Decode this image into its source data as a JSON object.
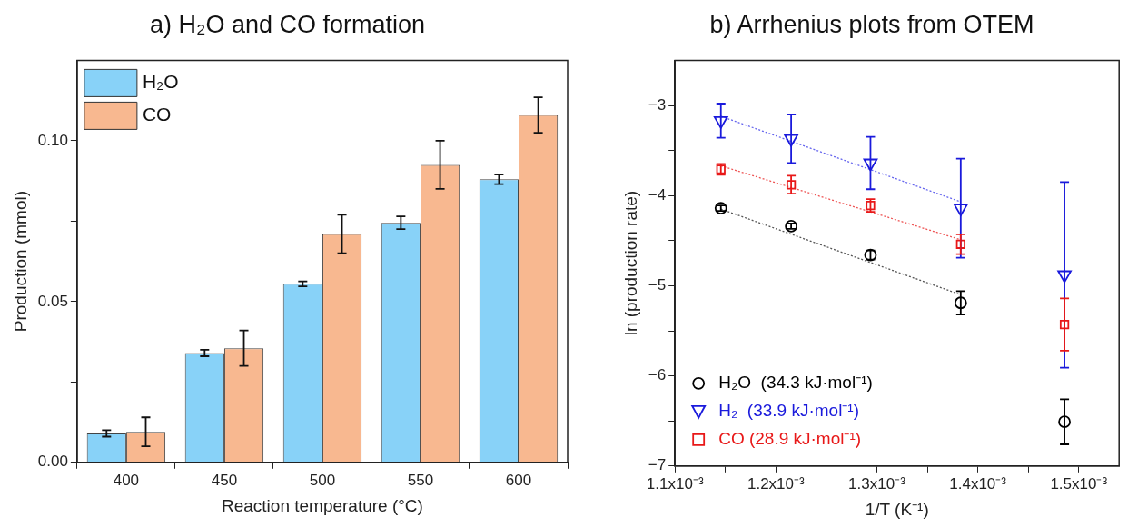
{
  "chart_data": [
    {
      "type": "bar",
      "title": "a) H₂O and CO formation",
      "xlabel": "Reaction temperature (°C)",
      "ylabel": "Production (mmol)",
      "categories": [
        "400",
        "450",
        "500",
        "550",
        "600"
      ],
      "series": [
        {
          "name": "H₂O",
          "color": "#88d2f8",
          "values": [
            0.009,
            0.034,
            0.0555,
            0.0745,
            0.088
          ],
          "errors": [
            0.001,
            0.001,
            0.0008,
            0.002,
            0.0015
          ]
        },
        {
          "name": "CO",
          "color": "#f8b890",
          "values": [
            0.0095,
            0.0355,
            0.071,
            0.0925,
            0.108
          ],
          "errors": [
            0.0045,
            0.0055,
            0.006,
            0.0075,
            0.0055
          ]
        }
      ],
      "ylim": [
        0,
        0.125
      ],
      "yticks": [
        {
          "value": 0,
          "label": "0.00"
        },
        {
          "value": 0.025,
          "label": null
        },
        {
          "value": 0.05,
          "label": "0.05"
        },
        {
          "value": 0.075,
          "label": null
        },
        {
          "value": 0.1,
          "label": "0.10"
        }
      ],
      "legend": "top left",
      "grid": false
    },
    {
      "type": "scatter",
      "title": "b) Arrhenius plots from OTEM",
      "xlabel": "1/T (K⁻¹)",
      "ylabel": "ln (production rate)",
      "series": [
        {
          "name": "H₂O  (34.3 kJ·mol⁻¹)",
          "color": "#000000",
          "marker": "circle",
          "x": [
            0.0011455,
            0.0012151,
            0.0012937,
            0.0013831,
            0.0014859
          ],
          "values": [
            -4.14,
            -4.34,
            -4.66,
            -5.19,
            -6.51
          ],
          "errors": [
            0.03,
            0.03,
            0.05,
            0.13,
            0.25
          ]
        },
        {
          "name": "H₂  (33.9 kJ·mol⁻¹)",
          "color": "#1a1adc",
          "marker": "triangle",
          "x": [
            0.0011455,
            0.0012151,
            0.0012937,
            0.0013831,
            0.0014859
          ],
          "values": [
            -3.17,
            -3.37,
            -3.64,
            -4.14,
            -4.88
          ],
          "errors": [
            0.19,
            0.27,
            0.29,
            0.55,
            1.03
          ]
        },
        {
          "name": "CO (28.9 kJ·mol⁻¹)",
          "color": "#e81818",
          "marker": "square",
          "x": [
            0.0011455,
            0.0012151,
            0.0012937,
            0.0013831,
            0.0014859
          ],
          "values": [
            -3.71,
            -3.88,
            -4.11,
            -4.54,
            -5.43
          ],
          "errors": [
            0.06,
            0.1,
            0.07,
            0.11,
            0.29
          ]
        },
        {
          "type": "line",
          "color": "#6666ee",
          "marker": "none",
          "line_style": "dotted",
          "x": [
            0.0011455,
            0.0013831
          ],
          "values": [
            -3.12,
            -4.07
          ]
        },
        {
          "type": "line",
          "color": "#ee5555",
          "marker": "none",
          "line_style": "dotted",
          "x": [
            0.0011455,
            0.0013831
          ],
          "values": [
            -3.67,
            -4.49
          ]
        },
        {
          "type": "line",
          "color": "#555555",
          "marker": "none",
          "line_style": "dotted",
          "x": [
            0.0011455,
            0.0013831
          ],
          "values": [
            -4.15,
            -5.1
          ]
        }
      ],
      "xlim": [
        0.0011,
        0.00154
      ],
      "xticks": [
        {
          "value": 0.0011,
          "label": "1.1x10⁻³"
        },
        {
          "value": 0.00115,
          "label": null
        },
        {
          "value": 0.0012,
          "label": "1.2x10⁻³"
        },
        {
          "value": 0.00125,
          "label": null
        },
        {
          "value": 0.0013,
          "label": "1.3x10⁻³"
        },
        {
          "value": 0.00135,
          "label": null
        },
        {
          "value": 0.0014,
          "label": "1.4x10⁻³"
        },
        {
          "value": 0.00145,
          "label": null
        },
        {
          "value": 0.0015,
          "label": "1.5x10⁻³"
        }
      ],
      "ylim": [
        -7,
        -2.5
      ],
      "yticks": [
        {
          "value": -7,
          "label": "−7"
        },
        {
          "value": -6.5,
          "label": null
        },
        {
          "value": -6,
          "label": "−6"
        },
        {
          "value": -5.5,
          "label": null
        },
        {
          "value": -5,
          "label": "−5"
        },
        {
          "value": -4.5,
          "label": null
        },
        {
          "value": -4,
          "label": "−4"
        },
        {
          "value": -3.5,
          "label": null
        },
        {
          "value": -3,
          "label": "−3"
        }
      ],
      "legend": "bottom left",
      "grid": false
    }
  ]
}
